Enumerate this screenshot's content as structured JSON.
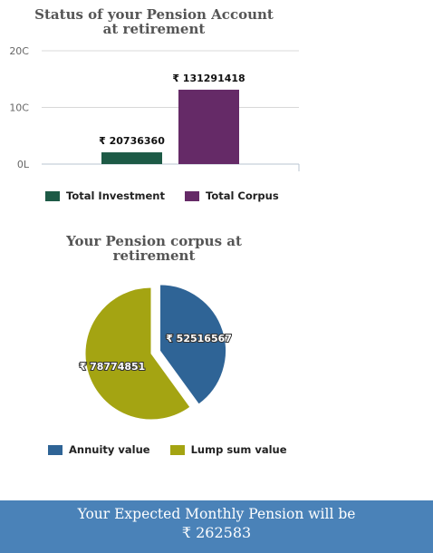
{
  "chart_data": [
    {
      "type": "bar",
      "title_lines": [
        "Status of your Pension Account",
        "at retirement"
      ],
      "tick_labels": [
        "0L",
        "10C",
        "20C"
      ],
      "ylim": [
        0,
        200000000
      ],
      "grid": true,
      "series": [
        {
          "name": "Total Investment",
          "value": 20736360,
          "label": "₹ 20736360",
          "color": "#1d5a46"
        },
        {
          "name": "Total Corpus",
          "value": 131291418,
          "label": "₹ 131291418",
          "color": "#652a67"
        }
      ],
      "legend_position": "bottom-left"
    },
    {
      "type": "pie",
      "title_lines": [
        "Your Pension corpus at",
        "retirement"
      ],
      "slices": [
        {
          "name": "Annuity value",
          "value": 52516567,
          "label": "₹ 52516567",
          "color": "#2f6496",
          "exploded": true
        },
        {
          "name": "Lump sum value",
          "value": 78774851,
          "label": "₹ 78774851",
          "color": "#a4a412",
          "exploded": false
        }
      ],
      "legend_position": "bottom-left"
    }
  ],
  "footer": {
    "line1": "Your Expected Monthly Pension will be",
    "line2": "₹ 262583"
  }
}
